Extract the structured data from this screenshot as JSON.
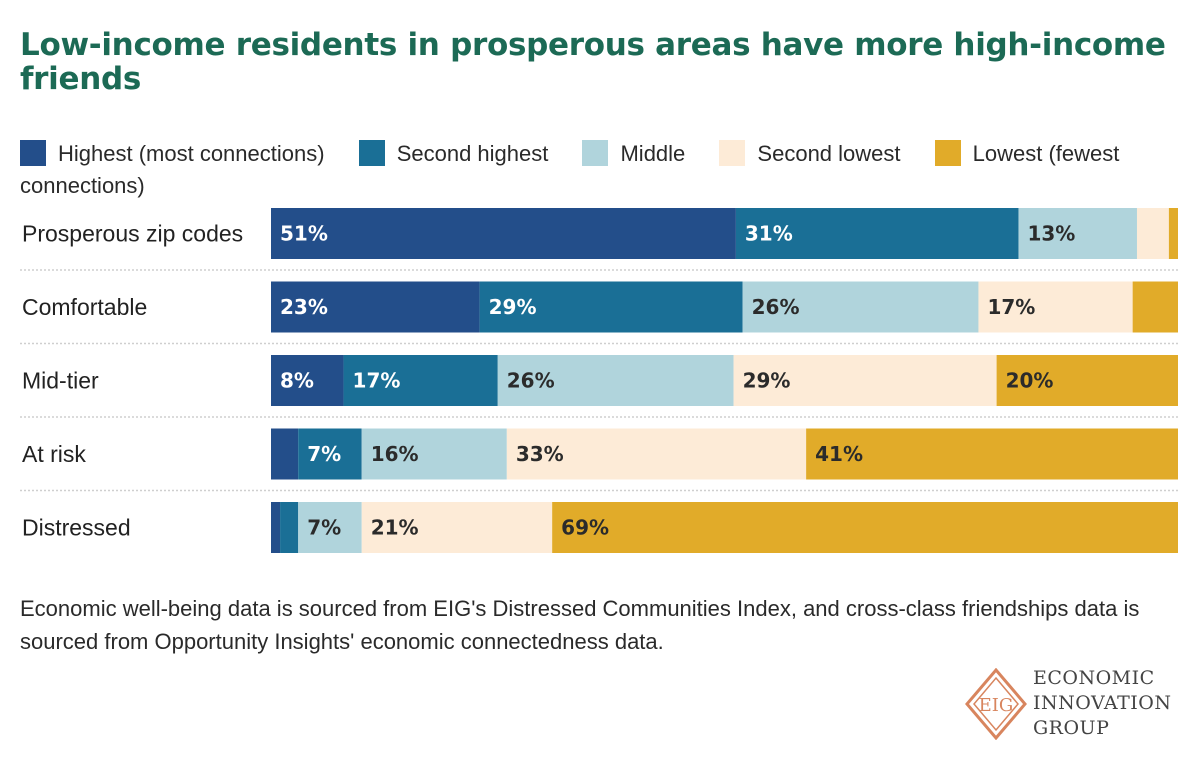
{
  "title": "Low-income residents in prosperous areas have more high-income friends",
  "legend": [
    {
      "label": "Highest (most connections)",
      "color": "#234e8a"
    },
    {
      "label": "Second highest",
      "color": "#1a6f96"
    },
    {
      "label": "Middle",
      "color": "#b0d4dc"
    },
    {
      "label": "Second lowest",
      "color": "#fdebd7"
    },
    {
      "label": "Lowest (fewest connections)",
      "color": "#e1ab29"
    }
  ],
  "chart_data": {
    "type": "bar",
    "orientation": "horizontal-stacked-100",
    "categories": [
      "Prosperous zip codes",
      "Comfortable",
      "Mid-tier",
      "At risk",
      "Distressed"
    ],
    "series": [
      {
        "name": "Highest (most connections)",
        "color": "#234e8a",
        "values": [
          51,
          23,
          8,
          3,
          1
        ]
      },
      {
        "name": "Second highest",
        "color": "#1a6f96",
        "values": [
          31,
          29,
          17,
          7,
          2
        ]
      },
      {
        "name": "Middle",
        "color": "#b0d4dc",
        "values": [
          13,
          26,
          26,
          16,
          7
        ]
      },
      {
        "name": "Second lowest",
        "color": "#fdebd7",
        "values": [
          3.5,
          17,
          29,
          33,
          21
        ]
      },
      {
        "name": "Lowest (fewest connections)",
        "color": "#e1ab29",
        "values": [
          1,
          5,
          20,
          41,
          69
        ]
      }
    ],
    "labels": [
      [
        "51%",
        "31%",
        "13%",
        "",
        ""
      ],
      [
        "23%",
        "29%",
        "26%",
        "17%",
        ""
      ],
      [
        "8%",
        "17%",
        "26%",
        "29%",
        "20%"
      ],
      [
        "",
        "7%",
        "16%",
        "33%",
        "41%"
      ],
      [
        "",
        "",
        "7%",
        "21%",
        "69%"
      ]
    ],
    "xlim": [
      0,
      100
    ]
  },
  "note": "Economic well-being data is sourced from EIG's Distressed Communities Index, and cross-class friendships data is sourced from Opportunity Insights' economic connectedness data.",
  "logo": {
    "lines": [
      "ECONOMIC",
      "INNOVATION",
      "GROUP"
    ],
    "mark_text": "EIG",
    "color": "#d8855e"
  }
}
